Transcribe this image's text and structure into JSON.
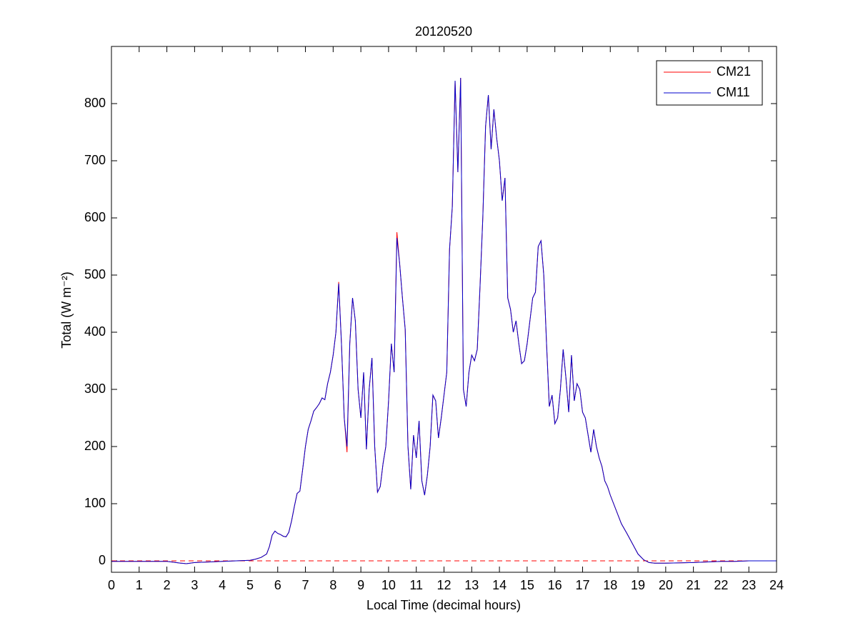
{
  "chart_data": {
    "type": "line",
    "title": "20120520",
    "xlabel": "Local Time (decimal hours)",
    "ylabel": "Total (W m⁻²)",
    "xlim": [
      0,
      24
    ],
    "xticks": [
      0,
      1,
      2,
      3,
      4,
      5,
      6,
      7,
      8,
      9,
      10,
      11,
      12,
      13,
      14,
      15,
      16,
      17,
      18,
      19,
      20,
      21,
      22,
      23,
      24
    ],
    "ylim": [
      -20,
      900
    ],
    "yticks": [
      0,
      100,
      200,
      300,
      400,
      500,
      600,
      700,
      800
    ],
    "legend": "upper right",
    "hline": 0,
    "hline_color": "#ff0000",
    "x": [
      0,
      0.5,
      1,
      1.5,
      2,
      2.5,
      2.7,
      3,
      3.5,
      4,
      4.5,
      5,
      5.2,
      5.4,
      5.6,
      5.7,
      5.8,
      5.9,
      6,
      6.1,
      6.2,
      6.3,
      6.4,
      6.5,
      6.6,
      6.7,
      6.8,
      6.9,
      7,
      7.1,
      7.2,
      7.3,
      7.4,
      7.5,
      7.6,
      7.7,
      7.8,
      7.9,
      8,
      8.1,
      8.2,
      8.3,
      8.4,
      8.5,
      8.6,
      8.7,
      8.8,
      8.9,
      9,
      9.1,
      9.2,
      9.3,
      9.4,
      9.5,
      9.6,
      9.7,
      9.8,
      9.9,
      10,
      10.1,
      10.2,
      10.3,
      10.4,
      10.5,
      10.6,
      10.7,
      10.8,
      10.9,
      11,
      11.1,
      11.2,
      11.3,
      11.4,
      11.5,
      11.6,
      11.7,
      11.8,
      11.9,
      12,
      12.1,
      12.2,
      12.3,
      12.4,
      12.5,
      12.6,
      12.7,
      12.8,
      12.9,
      13,
      13.1,
      13.2,
      13.3,
      13.4,
      13.5,
      13.6,
      13.7,
      13.8,
      13.9,
      14,
      14.1,
      14.2,
      14.3,
      14.4,
      14.5,
      14.6,
      14.7,
      14.8,
      14.9,
      15,
      15.1,
      15.2,
      15.3,
      15.4,
      15.5,
      15.6,
      15.7,
      15.8,
      15.9,
      16,
      16.1,
      16.2,
      16.3,
      16.4,
      16.5,
      16.6,
      16.7,
      16.8,
      16.9,
      17,
      17.1,
      17.2,
      17.3,
      17.4,
      17.5,
      17.6,
      17.7,
      17.8,
      17.9,
      18,
      18.2,
      18.4,
      18.6,
      18.8,
      19,
      19.2,
      19.4,
      19.6,
      20,
      21,
      22,
      22.5,
      23,
      24
    ],
    "series": [
      {
        "name": "CM21",
        "color": "#ff0000",
        "values": [
          -1,
          -1,
          -1,
          -1,
          -1,
          -4,
          -5,
          -3,
          -2,
          -1,
          0,
          1,
          3,
          6,
          12,
          25,
          45,
          52,
          48,
          46,
          43,
          42,
          50,
          70,
          95,
          118,
          122,
          160,
          200,
          230,
          245,
          262,
          268,
          275,
          285,
          282,
          310,
          330,
          360,
          400,
          488,
          380,
          250,
          190,
          380,
          460,
          420,
          300,
          250,
          330,
          195,
          300,
          355,
          200,
          120,
          130,
          170,
          200,
          280,
          380,
          330,
          575,
          520,
          460,
          405,
          200,
          125,
          220,
          180,
          245,
          140,
          115,
          150,
          200,
          290,
          280,
          215,
          250,
          290,
          330,
          545,
          620,
          840,
          680,
          845,
          300,
          270,
          330,
          360,
          350,
          370,
          480,
          600,
          760,
          815,
          720,
          790,
          740,
          700,
          630,
          670,
          460,
          440,
          400,
          420,
          380,
          345,
          350,
          380,
          420,
          460,
          470,
          550,
          560,
          500,
          380,
          270,
          290,
          240,
          250,
          300,
          370,
          320,
          260,
          360,
          280,
          310,
          300,
          260,
          250,
          220,
          190,
          230,
          200,
          180,
          165,
          140,
          130,
          115,
          90,
          65,
          48,
          30,
          12,
          2,
          -3,
          -4,
          -4,
          -3,
          -1,
          -1,
          0,
          0
        ]
      },
      {
        "name": "CM11",
        "color": "#0000cc",
        "values": [
          -1,
          -1,
          -1,
          -1,
          -1,
          -4,
          -5,
          -3,
          -2,
          -1,
          0,
          1,
          3,
          6,
          12,
          25,
          45,
          52,
          48,
          46,
          43,
          42,
          50,
          70,
          95,
          118,
          122,
          160,
          200,
          230,
          245,
          262,
          268,
          275,
          285,
          282,
          310,
          330,
          360,
          400,
          485,
          380,
          250,
          200,
          380,
          460,
          420,
          300,
          250,
          330,
          195,
          300,
          355,
          200,
          120,
          130,
          170,
          200,
          280,
          380,
          330,
          565,
          520,
          460,
          405,
          200,
          125,
          220,
          180,
          245,
          140,
          115,
          150,
          200,
          290,
          280,
          215,
          250,
          290,
          330,
          545,
          620,
          840,
          680,
          845,
          300,
          270,
          330,
          360,
          350,
          370,
          480,
          600,
          760,
          815,
          720,
          790,
          740,
          700,
          630,
          670,
          460,
          440,
          400,
          420,
          380,
          345,
          350,
          380,
          420,
          460,
          470,
          550,
          560,
          500,
          380,
          270,
          290,
          240,
          250,
          300,
          370,
          320,
          260,
          360,
          280,
          310,
          300,
          260,
          250,
          220,
          190,
          230,
          200,
          180,
          165,
          140,
          130,
          115,
          90,
          65,
          48,
          30,
          12,
          2,
          -3,
          -4,
          -4,
          -3,
          -1,
          -1,
          0,
          0
        ]
      }
    ]
  }
}
